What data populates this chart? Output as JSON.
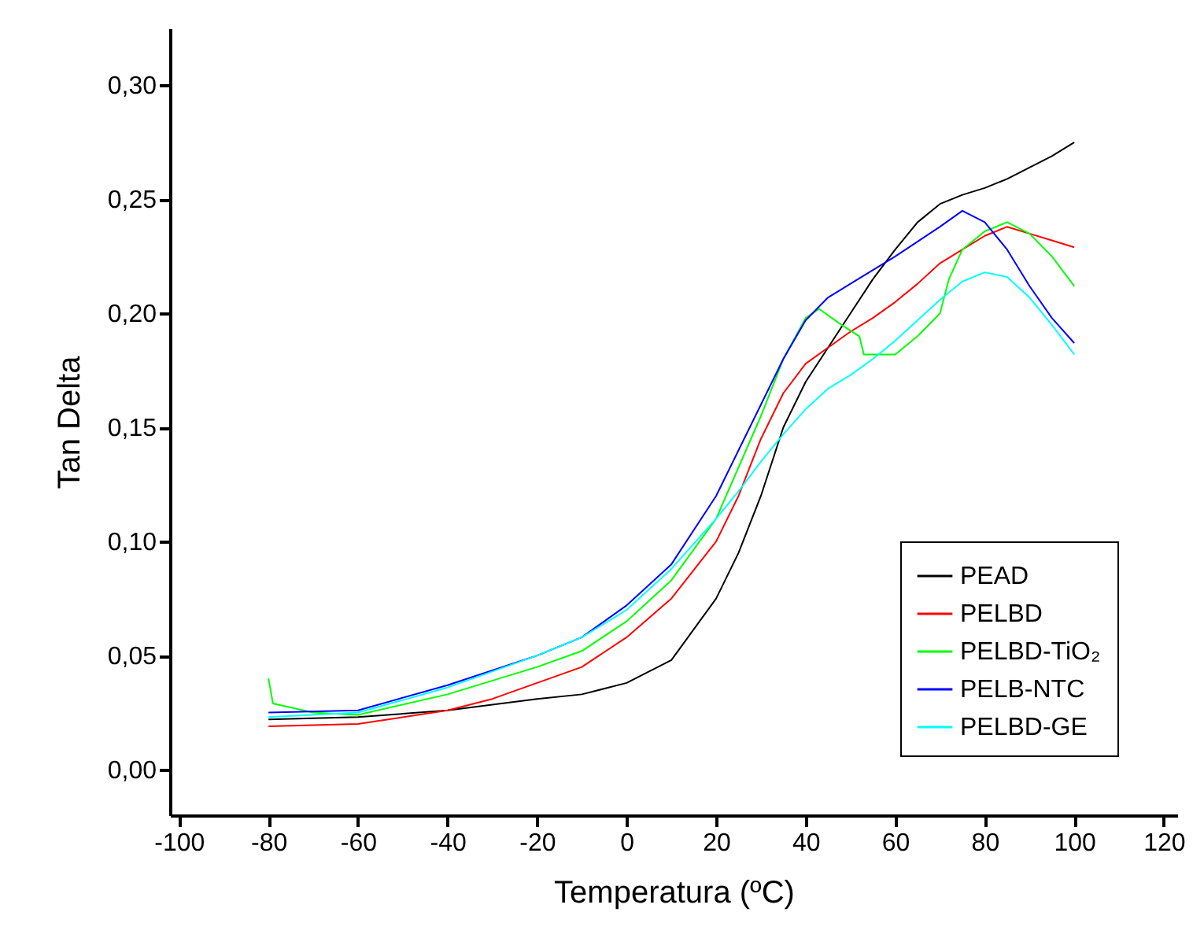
{
  "chart_data": {
    "type": "line",
    "xlabel": "Temperatura (ºC)",
    "ylabel": "Tan Delta",
    "xlim": [
      -102,
      123
    ],
    "ylim": [
      -0.02,
      0.325
    ],
    "xticks": [
      -100,
      -80,
      -60,
      -40,
      -20,
      0,
      20,
      40,
      60,
      80,
      100,
      120
    ],
    "yticks": [
      {
        "value": 0,
        "label": "0,00"
      },
      {
        "value": 0.05,
        "label": "0,05"
      },
      {
        "value": 0.1,
        "label": "0,10"
      },
      {
        "value": 0.15,
        "label": "0,15"
      },
      {
        "value": 0.2,
        "label": "0,20"
      },
      {
        "value": 0.25,
        "label": "0,25"
      },
      {
        "value": 0.3,
        "label": "0,30"
      }
    ],
    "grid": false,
    "legend": "bottom right",
    "line_style": "solid",
    "marker": "none",
    "series": [
      {
        "name": "PEAD",
        "color": "#000000",
        "x": [
          -80,
          -60,
          -40,
          -20,
          -10,
          0,
          10,
          20,
          25,
          30,
          35,
          40,
          45,
          50,
          55,
          60,
          65,
          70,
          75,
          80,
          85,
          90,
          95,
          100
        ],
        "values": [
          0.022,
          0.023,
          0.026,
          0.031,
          0.033,
          0.038,
          0.048,
          0.075,
          0.095,
          0.12,
          0.15,
          0.17,
          0.185,
          0.2,
          0.215,
          0.228,
          0.24,
          0.248,
          0.252,
          0.255,
          0.259,
          0.264,
          0.269,
          0.275
        ]
      },
      {
        "name": "PELBD",
        "color": "#ff0000",
        "x": [
          -80,
          -60,
          -40,
          -30,
          -20,
          -10,
          0,
          10,
          20,
          25,
          30,
          35,
          40,
          45,
          50,
          55,
          60,
          65,
          70,
          75,
          80,
          85,
          90,
          95,
          100
        ],
        "values": [
          0.019,
          0.02,
          0.026,
          0.031,
          0.038,
          0.045,
          0.058,
          0.075,
          0.1,
          0.12,
          0.145,
          0.165,
          0.178,
          0.185,
          0.192,
          0.198,
          0.205,
          0.213,
          0.222,
          0.228,
          0.234,
          0.238,
          0.235,
          0.232,
          0.229
        ]
      },
      {
        "name": "PELBD-TiO₂",
        "color": "#00ff00",
        "x": [
          -80,
          -79,
          -70,
          -60,
          -40,
          -20,
          -10,
          0,
          10,
          20,
          30,
          35,
          40,
          43,
          48,
          52,
          53,
          60,
          65,
          70,
          72,
          75,
          80,
          85,
          90,
          95,
          100
        ],
        "values": [
          0.04,
          0.029,
          0.025,
          0.024,
          0.033,
          0.045,
          0.052,
          0.065,
          0.083,
          0.11,
          0.155,
          0.18,
          0.198,
          0.202,
          0.195,
          0.19,
          0.182,
          0.182,
          0.19,
          0.2,
          0.215,
          0.228,
          0.236,
          0.24,
          0.235,
          0.225,
          0.212
        ]
      },
      {
        "name": "PELB-NTC",
        "color": "#0000ff",
        "x": [
          -80,
          -60,
          -40,
          -20,
          -10,
          0,
          10,
          20,
          25,
          30,
          35,
          40,
          45,
          50,
          60,
          70,
          75,
          80,
          85,
          90,
          95,
          100
        ],
        "values": [
          0.025,
          0.026,
          0.037,
          0.05,
          0.058,
          0.072,
          0.09,
          0.12,
          0.14,
          0.16,
          0.18,
          0.197,
          0.207,
          0.213,
          0.225,
          0.238,
          0.245,
          0.24,
          0.228,
          0.212,
          0.198,
          0.187
        ]
      },
      {
        "name": "PELBD-GE",
        "color": "#00ffff",
        "x": [
          -80,
          -60,
          -40,
          -20,
          -10,
          0,
          10,
          20,
          25,
          30,
          35,
          40,
          45,
          50,
          55,
          60,
          65,
          70,
          75,
          80,
          85,
          90,
          95,
          100
        ],
        "values": [
          0.023,
          0.025,
          0.036,
          0.05,
          0.058,
          0.07,
          0.088,
          0.11,
          0.122,
          0.135,
          0.147,
          0.158,
          0.167,
          0.173,
          0.18,
          0.188,
          0.197,
          0.206,
          0.214,
          0.218,
          0.216,
          0.207,
          0.195,
          0.182
        ]
      }
    ]
  }
}
